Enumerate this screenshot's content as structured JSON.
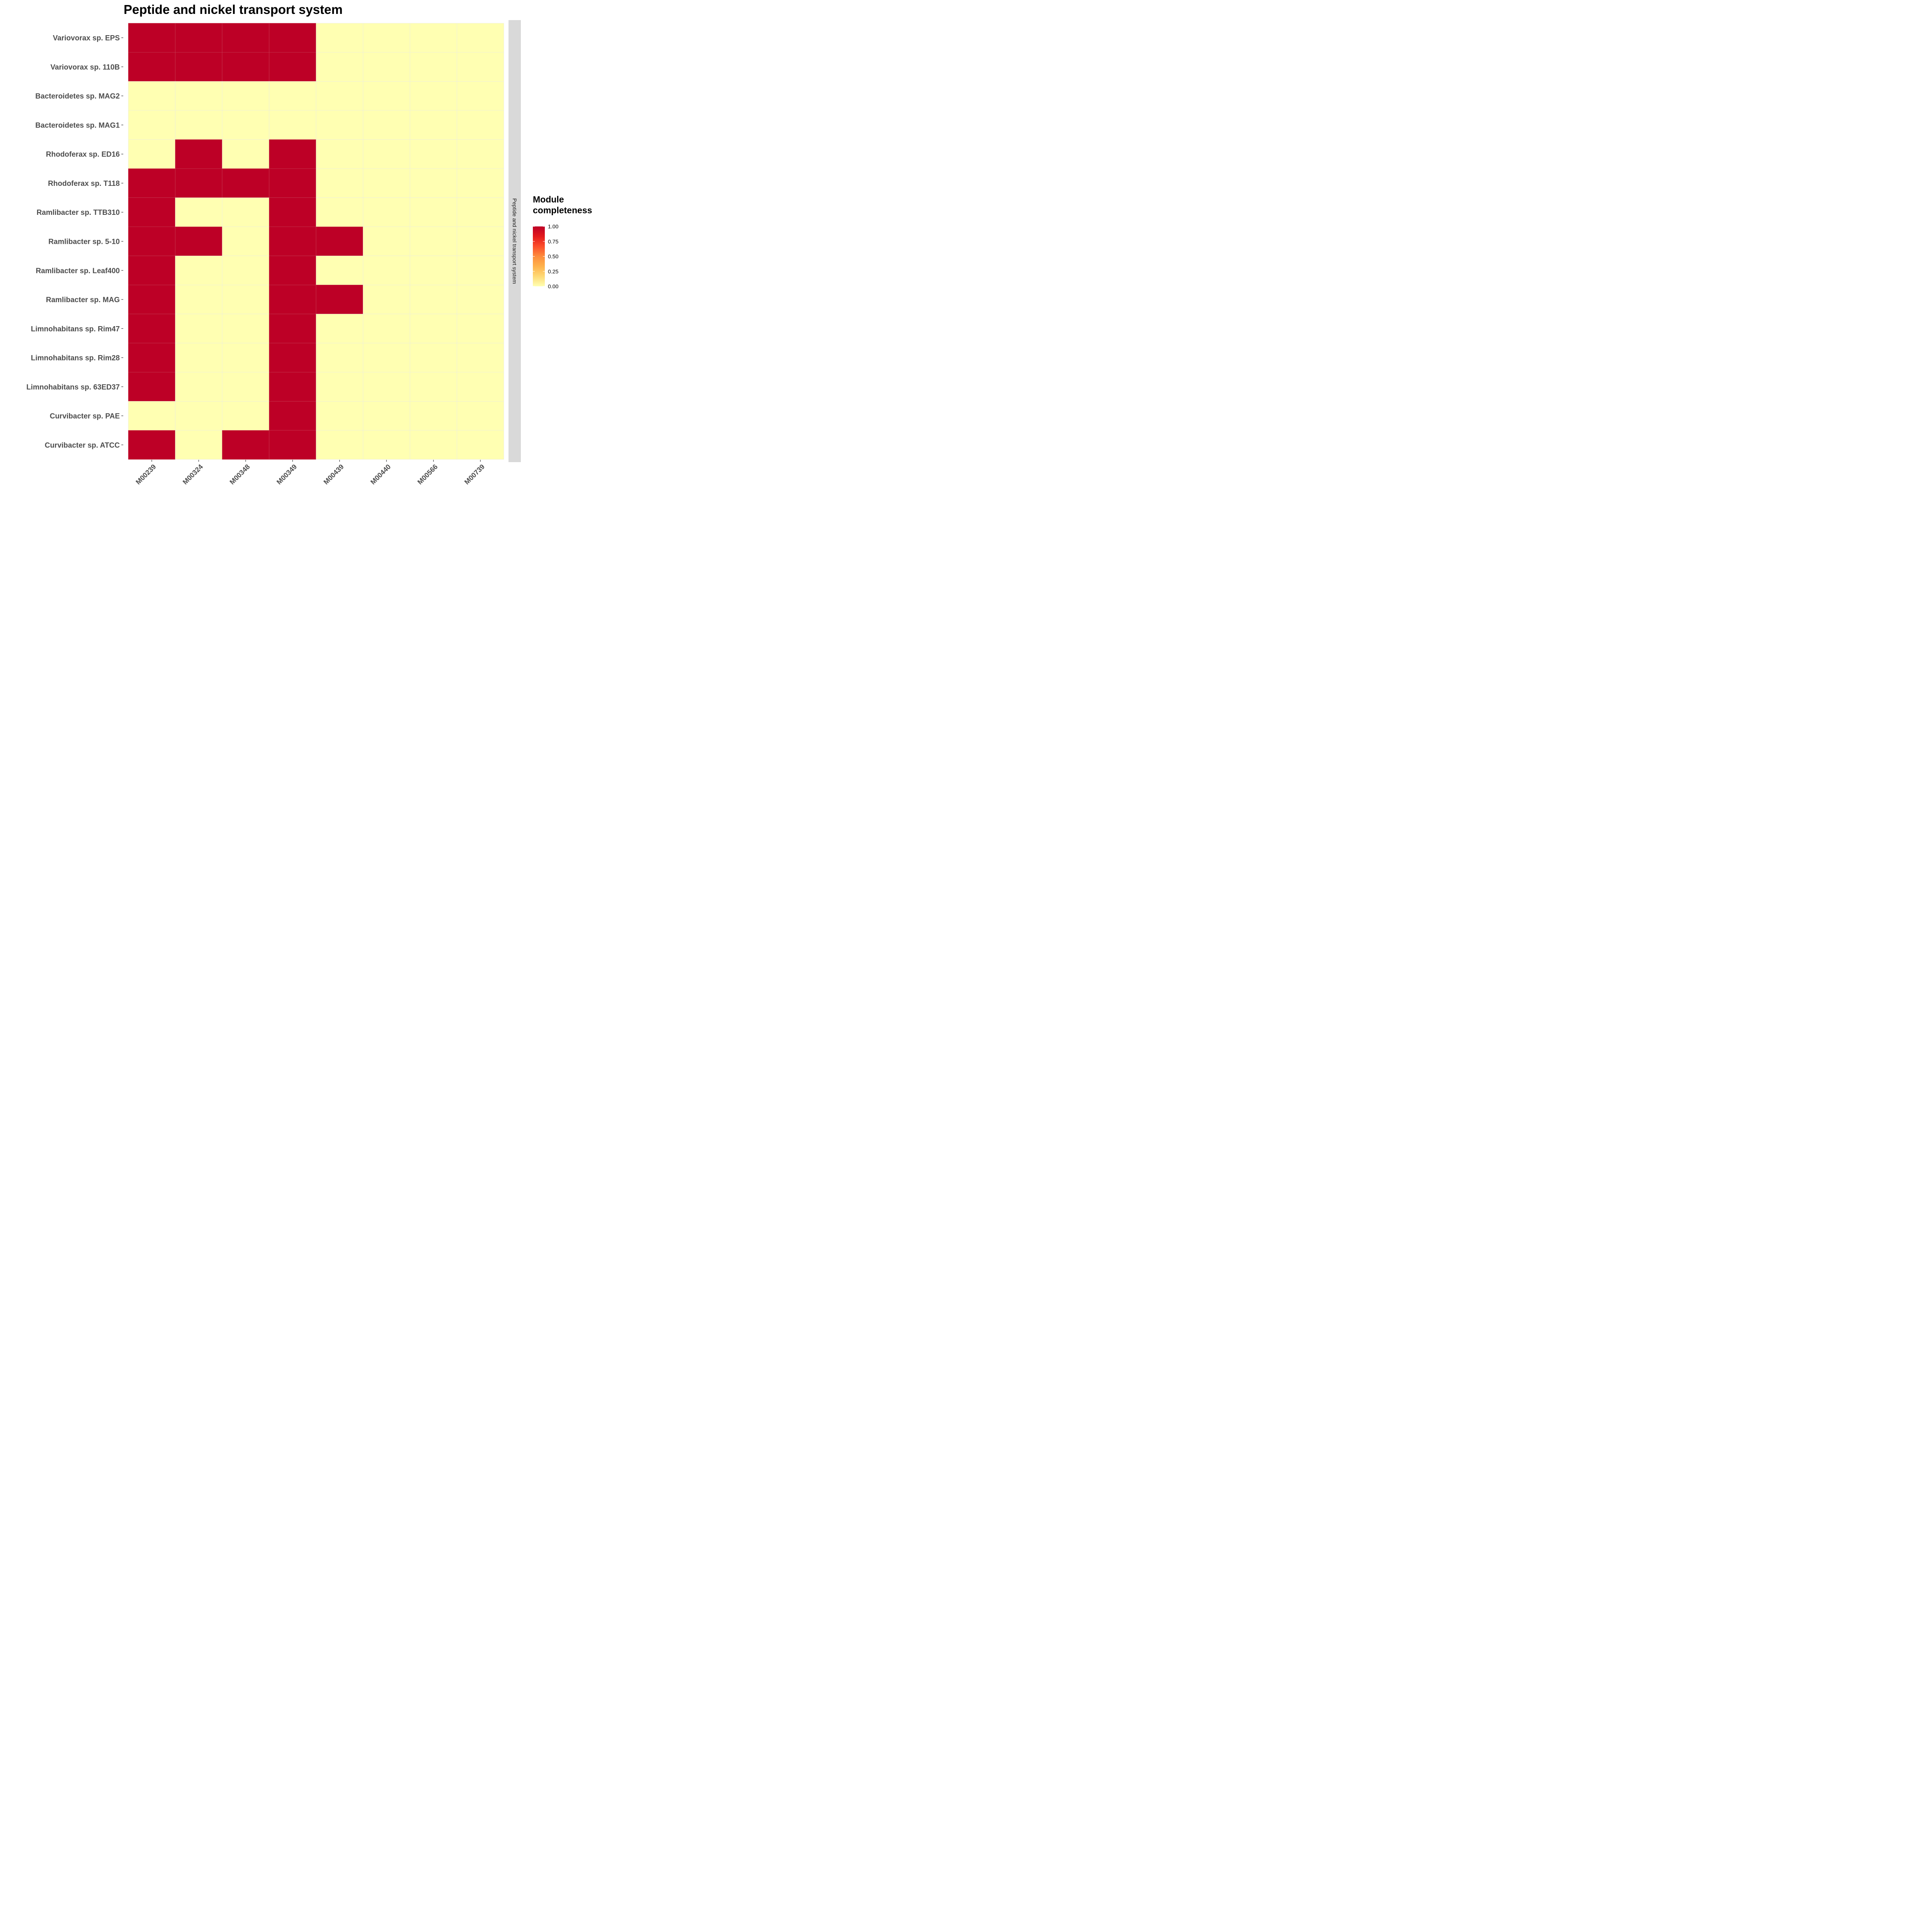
{
  "colors": {
    "low": "#FFFFB2",
    "high": "#BD0026",
    "strip": "#D9D9D9",
    "axis_text": "#4D4D4D",
    "tick": "#333333",
    "cell_border": "#E8E8E8"
  },
  "chart_data": {
    "type": "heatmap",
    "title": "Peptide and nickel transport system",
    "facet_label": "Peptide and nickel transport system",
    "x": [
      "M00239",
      "M00324",
      "M00348",
      "M00349",
      "M00439",
      "M00440",
      "M00566",
      "M00739"
    ],
    "y": [
      "Variovorax sp. EPS",
      "Variovorax sp. 110B",
      "Bacteroidetes sp. MAG2",
      "Bacteroidetes sp. MAG1",
      "Rhodoferax sp. ED16",
      "Rhodoferax sp. T118",
      "Ramlibacter sp. TTB310",
      "Ramlibacter sp. 5-10",
      "Ramlibacter sp. Leaf400",
      "Ramlibacter sp. MAG",
      "Limnohabitans sp. Rim47",
      "Limnohabitans sp. Rim28",
      "Limnohabitans sp. 63ED37",
      "Curvibacter sp. PAE",
      "Curvibacter sp. ATCC"
    ],
    "values": [
      [
        1,
        1,
        1,
        1,
        0,
        0,
        0,
        0
      ],
      [
        1,
        1,
        1,
        1,
        0,
        0,
        0,
        0
      ],
      [
        0,
        0,
        0,
        0,
        0,
        0,
        0,
        0
      ],
      [
        0,
        0,
        0,
        0,
        0,
        0,
        0,
        0
      ],
      [
        0,
        1,
        0,
        1,
        0,
        0,
        0,
        0
      ],
      [
        1,
        1,
        1,
        1,
        0,
        0,
        0,
        0
      ],
      [
        1,
        0,
        0,
        1,
        0,
        0,
        0,
        0
      ],
      [
        1,
        1,
        0,
        1,
        1,
        0,
        0,
        0
      ],
      [
        1,
        0,
        0,
        1,
        0,
        0,
        0,
        0
      ],
      [
        1,
        0,
        0,
        1,
        1,
        0,
        0,
        0
      ],
      [
        1,
        0,
        0,
        1,
        0,
        0,
        0,
        0
      ],
      [
        1,
        0,
        0,
        1,
        0,
        0,
        0,
        0
      ],
      [
        1,
        0,
        0,
        1,
        0,
        0,
        0,
        0
      ],
      [
        0,
        0,
        0,
        1,
        0,
        0,
        0,
        0
      ],
      [
        1,
        0,
        1,
        1,
        0,
        0,
        0,
        0
      ]
    ],
    "legend": {
      "title_lines": [
        "Module",
        "completeness"
      ],
      "ticks": [
        "1.00",
        "0.75",
        "0.50",
        "0.25",
        "0.00"
      ],
      "tick_values": [
        1.0,
        0.75,
        0.5,
        0.25,
        0.0
      ],
      "range": [
        0,
        1
      ],
      "gradient_stops": [
        "#FFFFB2",
        "#FED976",
        "#FEB24C",
        "#FD8D3C",
        "#FC4E2A",
        "#E31A1C",
        "#BD0026"
      ],
      "position": "right"
    },
    "grid": false
  }
}
